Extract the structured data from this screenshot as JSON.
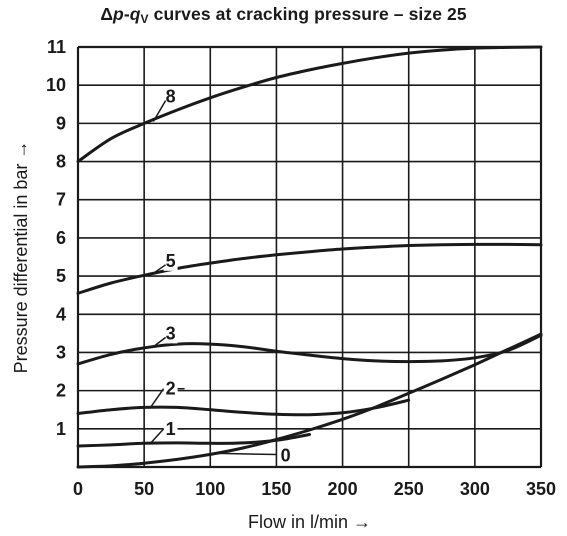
{
  "chart_data": {
    "type": "line",
    "title_parts": {
      "delta": "Δ",
      "p": "p",
      "dash": "-",
      "q": "q",
      "sub": "V",
      "rest": " curves at cracking pressure – size 25"
    },
    "xlabel": "Flow in l/min →",
    "ylabel": "Pressure differential in bar →",
    "xlim": [
      0,
      350
    ],
    "ylim": [
      0,
      11
    ],
    "x_ticks": [
      "0",
      "50",
      "100",
      "150",
      "200",
      "250",
      "300",
      "350"
    ],
    "y_ticks": [
      "1",
      "2",
      "3",
      "4",
      "5",
      "6",
      "7",
      "8",
      "9",
      "10",
      "11"
    ],
    "grid": true,
    "series": [
      {
        "name": "0",
        "x": [
          0,
          25,
          50,
          75,
          100,
          125,
          150,
          175,
          200,
          225,
          250,
          275,
          300,
          325,
          350
        ],
        "y": [
          0,
          0.03,
          0.1,
          0.2,
          0.33,
          0.5,
          0.72,
          0.97,
          1.25,
          1.57,
          1.93,
          2.3,
          2.68,
          3.08,
          3.48
        ]
      },
      {
        "name": "1",
        "x": [
          0,
          25,
          50,
          75,
          100,
          125,
          150,
          175
        ],
        "y": [
          0.55,
          0.58,
          0.62,
          0.63,
          0.62,
          0.63,
          0.7,
          0.85
        ]
      },
      {
        "name": "2",
        "x": [
          0,
          25,
          50,
          75,
          100,
          125,
          150,
          175,
          200,
          225,
          250
        ],
        "y": [
          1.4,
          1.5,
          1.56,
          1.56,
          1.5,
          1.43,
          1.38,
          1.37,
          1.42,
          1.55,
          1.75
        ]
      },
      {
        "name": "3",
        "x": [
          0,
          25,
          50,
          75,
          100,
          125,
          150,
          175,
          200,
          225,
          250,
          275,
          300,
          325,
          350
        ],
        "y": [
          2.7,
          2.95,
          3.12,
          3.22,
          3.22,
          3.15,
          3.03,
          2.93,
          2.84,
          2.78,
          2.76,
          2.78,
          2.86,
          3.05,
          3.45
        ]
      },
      {
        "name": "5",
        "x": [
          0,
          25,
          50,
          75,
          100,
          125,
          150,
          175,
          200,
          225,
          250,
          275,
          300,
          325,
          350
        ],
        "y": [
          4.55,
          4.82,
          5.02,
          5.2,
          5.34,
          5.46,
          5.56,
          5.64,
          5.71,
          5.76,
          5.8,
          5.82,
          5.83,
          5.83,
          5.82
        ]
      },
      {
        "name": "8",
        "x": [
          0,
          25,
          50,
          75,
          100,
          125,
          150,
          175,
          200,
          225,
          250,
          275,
          300,
          325,
          350
        ],
        "y": [
          8.0,
          8.6,
          9.0,
          9.35,
          9.67,
          9.95,
          10.2,
          10.4,
          10.57,
          10.72,
          10.84,
          10.92,
          10.97,
          10.99,
          11.0
        ]
      }
    ],
    "curve_labels": [
      {
        "text": "8",
        "label_x": 70,
        "label_y": 9.7,
        "anchor_x": 57,
        "anchor_y": 9.05
      },
      {
        "text": "5",
        "label_x": 70,
        "label_y": 5.4,
        "anchor_x": 56,
        "anchor_y": 5.05
      },
      {
        "text": "3",
        "label_x": 70,
        "label_y": 3.5,
        "anchor_x": 57,
        "anchor_y": 3.15
      },
      {
        "text": "2",
        "label_x": 70,
        "label_y": 2.05,
        "anchor_x": 55,
        "anchor_y": 1.57
      },
      {
        "text": "1",
        "label_x": 70,
        "label_y": 1.0,
        "anchor_x": 55,
        "anchor_y": 0.63
      },
      {
        "text": "0",
        "label_x": 157,
        "label_y": 0.3,
        "anchor_x": 102,
        "anchor_y": 0.36
      }
    ],
    "line_color": "#1a1a1a",
    "grid_color": "#1a1a1a"
  }
}
